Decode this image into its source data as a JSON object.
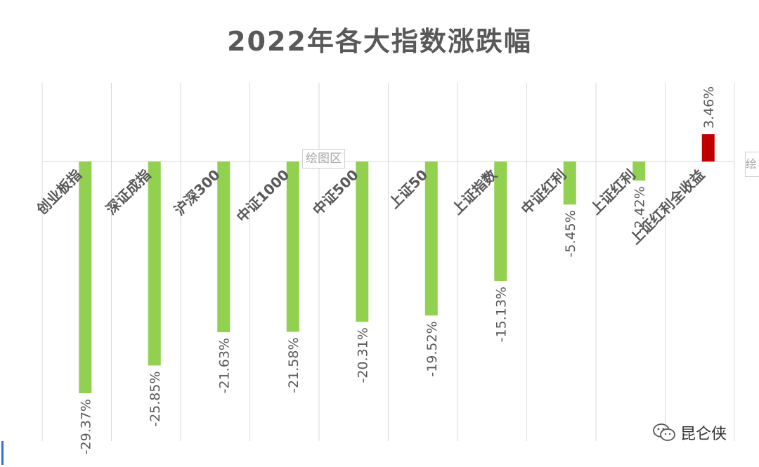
{
  "chart_data": {
    "type": "bar",
    "title": "2022年各大指数涨跌幅",
    "categories": [
      "创业板指",
      "深证成指",
      "沪深300",
      "中证1000",
      "中证500",
      "上证50",
      "上证指数",
      "中证红利",
      "上证红利",
      "上证红利全收益"
    ],
    "values": [
      -29.37,
      -25.85,
      -21.63,
      -21.58,
      -20.31,
      -19.52,
      -15.13,
      -5.45,
      -2.42,
      3.46
    ],
    "data_labels": [
      "-29.37%",
      "-25.85%",
      "-21.63%",
      "-21.58%",
      "-20.31%",
      "-19.52%",
      "-15.13%",
      "-5.45%",
      "-2.42%",
      "3.46%"
    ],
    "ylim": [
      -35,
      10
    ],
    "xlabel": "",
    "ylabel": "",
    "grid": "vertical",
    "colors": {
      "negative": "#92d050",
      "positive": "#c00000",
      "grid": "#d9d9d9",
      "label": "#595959"
    }
  },
  "ui": {
    "plot_area_tag": "绘图区",
    "side_tag": "绘"
  },
  "watermark": {
    "icon": "wechat-icon",
    "text": "昆仑侠"
  }
}
